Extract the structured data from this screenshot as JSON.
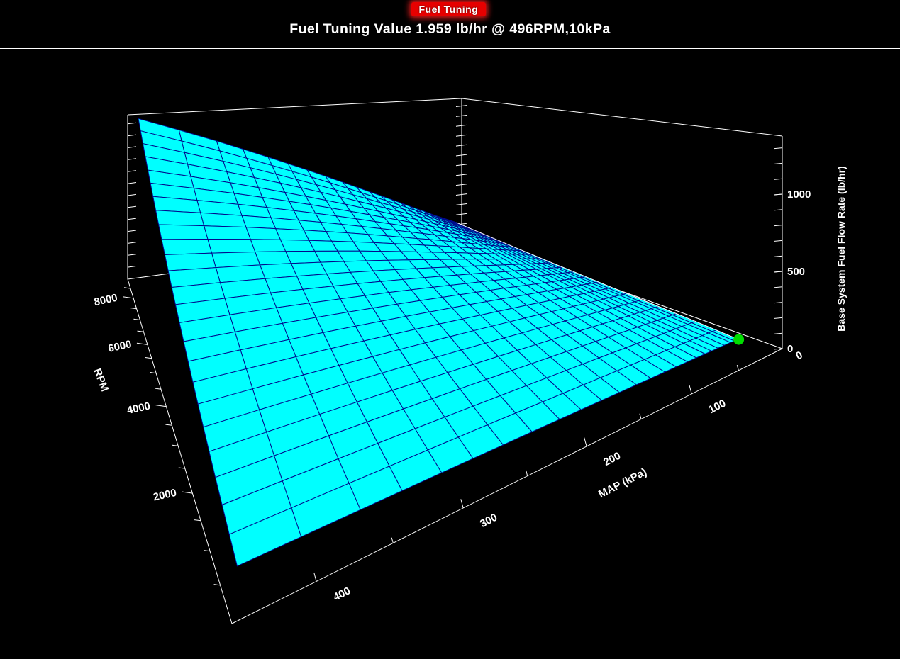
{
  "window": {
    "badge": "Fuel Tuning",
    "title": "Fuel Tuning Value 1.959 lb/hr @ 496RPM,10kPa"
  },
  "colors": {
    "background": "#000000",
    "badge_bg": "#E60000",
    "badge_glow": "#FF2020",
    "text": "#FFFFFF",
    "axis": "#FFFFFF",
    "surface_fill": "#00FFFF",
    "surface_edge": "#000A8C",
    "surface_rim": "#FFFFFF",
    "marker": "#00DD00"
  },
  "chart_data": {
    "type": "surface",
    "title": "Fuel Tuning Value 1.959 lb/hr @ 496RPM,10kPa",
    "x_axis": {
      "label": "MAP (kPa)",
      "range": [
        0,
        450
      ],
      "ticks_labeled": [
        100,
        200,
        300,
        400
      ],
      "zero_label": 0,
      "minor_step": 50
    },
    "y_axis": {
      "label": "RPM",
      "range": [
        0,
        9000
      ],
      "ticks_labeled": [
        2000,
        4000,
        6000,
        8000
      ],
      "minor_step": 500
    },
    "z_axis": {
      "label": "Base System Fuel Flow Rate (lb/hr)",
      "range": [
        0,
        1376
      ],
      "ticks_labeled": [
        0,
        500,
        1000
      ],
      "minor_step": 100
    },
    "rpm_values": [
      496,
      1200,
      1900,
      2600,
      3300,
      4000,
      4700,
      5400,
      6100,
      6800,
      7500,
      8250,
      9000
    ],
    "map_values": [
      10,
      20,
      35,
      50,
      70,
      95,
      125,
      160,
      200,
      250,
      300,
      360,
      440
    ],
    "z_matrix": [
      [
        2.0,
        8.1,
        10.1,
        12.1,
        15.1,
        18.8,
        23.5,
        28.9,
        35.2,
        43.3,
        51.3,
        61.1,
        73.8
      ],
      [
        16.2,
        19.5,
        24.4,
        29.2,
        36.5,
        45.5,
        56.9,
        69.8,
        85.3,
        104.8,
        124.3,
        147.8,
        178.7
      ],
      [
        25.7,
        30.9,
        38.6,
        46.3,
        57.9,
        72.0,
        90.0,
        110.6,
        135.0,
        165.9,
        196.8,
        234.1,
        282.9
      ],
      [
        35.2,
        42.2,
        52.8,
        63.3,
        79.2,
        98.5,
        123.2,
        151.3,
        184.8,
        227.0,
        269.2,
        320.2,
        387.1
      ],
      [
        44.7,
        53.6,
        67.0,
        80.4,
        100.5,
        125.1,
        156.3,
        192.1,
        234.5,
        288.1,
        341.7,
        406.5,
        491.3
      ],
      [
        54.1,
        65.0,
        81.2,
        97.5,
        121.8,
        151.6,
        189.5,
        232.8,
        284.3,
        349.2,
        414.2,
        492.7,
        595.6
      ],
      [
        63.6,
        76.3,
        95.4,
        114.5,
        143.1,
        178.1,
        222.7,
        273.6,
        334.0,
        410.3,
        486.7,
        578.9,
        699.8
      ],
      [
        73.1,
        87.7,
        109.6,
        131.6,
        164.5,
        204.7,
        255.8,
        314.3,
        383.8,
        471.5,
        559.2,
        665.2,
        804.1
      ],
      [
        82.6,
        99.1,
        123.9,
        148.6,
        185.8,
        231.2,
        289.0,
        355.0,
        433.5,
        532.6,
        631.6,
        751.4,
        908.2
      ],
      [
        92.0,
        110.5,
        138.1,
        165.7,
        207.1,
        257.7,
        322.2,
        395.8,
        483.2,
        593.7,
        704.1,
        837.6,
        1012.5
      ],
      [
        101.5,
        121.8,
        152.3,
        182.7,
        228.4,
        284.3,
        355.3,
        436.5,
        533.0,
        654.8,
        776.6,
        923.8,
        1116.7
      ],
      [
        111.7,
        134.0,
        167.5,
        201.0,
        251.3,
        312.7,
        390.9,
        480.2,
        586.3,
        720.3,
        854.3,
        1016.2,
        1228.4
      ],
      [
        121.8,
        146.2,
        182.7,
        219.3,
        274.1,
        341.1,
        426.4,
        523.8,
        639.6,
        785.8,
        931.9,
        1108.6,
        1340.1
      ]
    ],
    "marker": {
      "rpm": 496,
      "map": 10,
      "value_lbhr": 1.959
    }
  }
}
